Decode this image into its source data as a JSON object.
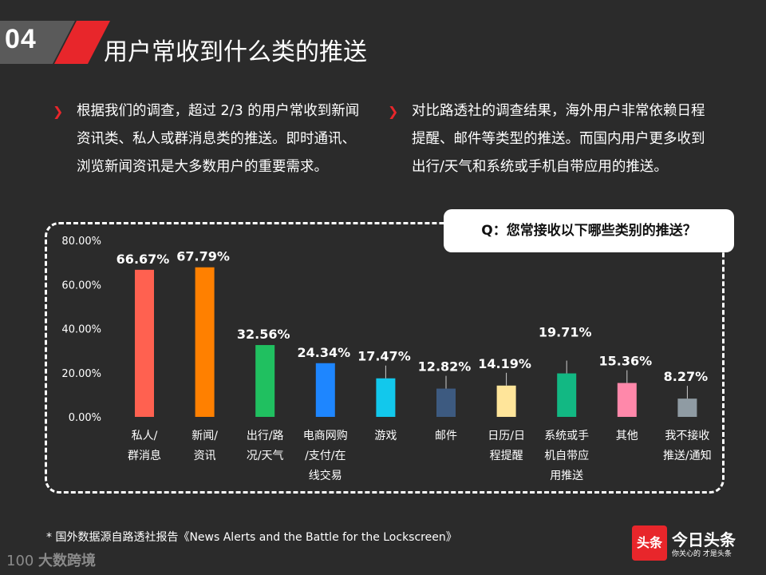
{
  "header": {
    "slide_number": "04",
    "title": "用户常收到什么类的推送"
  },
  "bullets": {
    "left": "根据我们的调查，超过 2/3 的用户常收到新闻资讯类、私人或群消息类的推送。即时通讯、浏览新闻资讯是大多数用户的重要需求。",
    "right": "对比路透社的调查结果，海外用户非常依赖日程提醒、邮件等类型的推送。而国内用户更多收到出行/天气和系统或手机自带应用的推送。"
  },
  "question": "Q：您常接收以下哪些类别的推送？",
  "chart_data": {
    "type": "bar",
    "title": "",
    "xlabel": "",
    "ylabel": "",
    "ylim": [
      0,
      80
    ],
    "yticks": [
      "0.00%",
      "20.00%",
      "40.00%",
      "60.00%",
      "80.00%"
    ],
    "categories": [
      [
        "私人/",
        "群消息"
      ],
      [
        "新闻/",
        "资讯"
      ],
      [
        "出行/路",
        "况/天气"
      ],
      [
        "电商网购",
        "/支付/在",
        "线交易"
      ],
      [
        "游戏"
      ],
      [
        "邮件"
      ],
      [
        "日历/日",
        "程提醒"
      ],
      [
        "系统或手",
        "机自带应",
        "用推送"
      ],
      [
        "其他"
      ],
      [
        "我不接收",
        "推送/通知"
      ]
    ],
    "values": [
      66.67,
      67.79,
      32.56,
      24.34,
      17.47,
      12.82,
      14.19,
      19.71,
      15.36,
      8.27
    ],
    "labels": [
      "66.67%",
      "67.79%",
      "32.56%",
      "24.34%",
      "17.47%",
      "12.82%",
      "14.19%",
      "19.71%",
      "15.36%",
      "8.27%"
    ],
    "colors": [
      "#ff6150",
      "#ff8000",
      "#20c060",
      "#1e86ff",
      "#12c8ec",
      "#3d5a80",
      "#ffe59a",
      "#12b883",
      "#ff88aa",
      "#8f9ba3"
    ]
  },
  "footnote": "*  国外数据源自路透社报告《News Alerts  and the Battle for the Lockscreen》",
  "branding": {
    "left_logo": "100",
    "left_name": "大数跨境",
    "right_icon": "头条",
    "right_name": "今日头条",
    "right_slogan": "你关心的 才是头条"
  }
}
